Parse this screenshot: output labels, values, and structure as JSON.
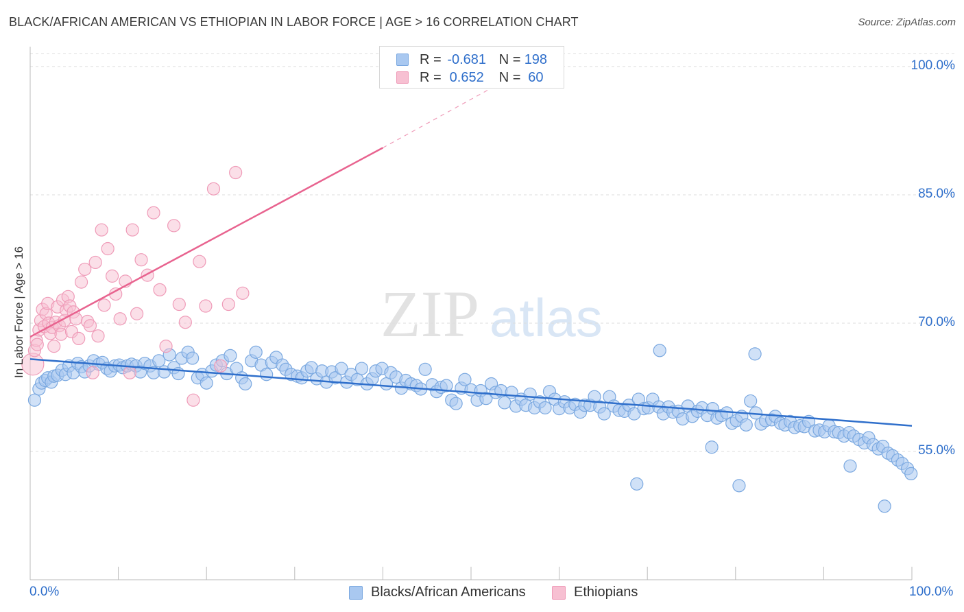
{
  "header": {
    "title": "BLACK/AFRICAN AMERICAN VS ETHIOPIAN IN LABOR FORCE | AGE > 16 CORRELATION CHART",
    "source": "Source: ZipAtlas.com"
  },
  "watermark": {
    "zip": "ZIP",
    "atlas": "atlas"
  },
  "colors": {
    "blue_fill": "#a9c8f0",
    "blue_stroke": "#7aa8e0",
    "blue_line": "#2f6fcb",
    "pink_fill": "#f7c0d2",
    "pink_stroke": "#ef9bb8",
    "pink_line": "#e8638f",
    "axis_text": "#2f6fcb",
    "grid": "#dddddd"
  },
  "legend": {
    "series": [
      {
        "r_label": "R =",
        "r_value": "-0.681",
        "n_label": "N =",
        "n_value": "198",
        "color": "#a9c8f0",
        "border": "#7aa8e0"
      },
      {
        "r_label": "R =",
        "r_value": "0.652",
        "n_label": "N =",
        "n_value": "60",
        "color": "#f7c0d2",
        "border": "#ef9bb8"
      }
    ]
  },
  "bottom_legend": [
    {
      "label": "Blacks/African Americans",
      "color": "#a9c8f0",
      "border": "#7aa8e0"
    },
    {
      "label": "Ethiopians",
      "color": "#f7c0d2",
      "border": "#ef9bb8"
    }
  ],
  "chart_data": {
    "type": "scatter",
    "title": "BLACK/AFRICAN AMERICAN VS ETHIOPIAN IN LABOR FORCE | AGE > 16 CORRELATION CHART",
    "xlabel": "",
    "ylabel": "In Labor Force | Age > 16",
    "xlim": [
      0,
      100
    ],
    "ylim": [
      40,
      102
    ],
    "x_tick_labels": [
      "0.0%",
      "100.0%"
    ],
    "y_ticks": [
      55,
      70,
      85,
      100
    ],
    "y_tick_labels": [
      "55.0%",
      "70.0%",
      "85.0%",
      "100.0%"
    ],
    "grid": "horizontal dashed",
    "legend_position": "top-center",
    "series": [
      {
        "name": "Blacks/African Americans",
        "r": -0.681,
        "n": 198,
        "trend": {
          "x": [
            0,
            100
          ],
          "y": [
            65.8,
            58.0
          ]
        },
        "points": [
          [
            0.5,
            61.0
          ],
          [
            1.0,
            62.3
          ],
          [
            1.3,
            63.0
          ],
          [
            1.7,
            63.3
          ],
          [
            2.0,
            63.6
          ],
          [
            2.4,
            63.1
          ],
          [
            2.7,
            63.8
          ],
          [
            3.1,
            63.9
          ],
          [
            3.6,
            64.5
          ],
          [
            4.0,
            64.0
          ],
          [
            4.4,
            65.0
          ],
          [
            4.9,
            64.2
          ],
          [
            5.4,
            65.3
          ],
          [
            5.8,
            64.9
          ],
          [
            6.2,
            64.3
          ],
          [
            6.7,
            65.0
          ],
          [
            7.2,
            65.6
          ],
          [
            7.8,
            65.2
          ],
          [
            8.2,
            65.4
          ],
          [
            8.7,
            64.7
          ],
          [
            9.1,
            64.4
          ],
          [
            9.6,
            65.0
          ],
          [
            10.1,
            65.1
          ],
          [
            10.5,
            64.8
          ],
          [
            11.0,
            65.0
          ],
          [
            11.5,
            65.2
          ],
          [
            12.0,
            65.0
          ],
          [
            12.5,
            64.3
          ],
          [
            13.0,
            65.3
          ],
          [
            13.6,
            65.0
          ],
          [
            14.0,
            64.2
          ],
          [
            14.6,
            65.6
          ],
          [
            15.2,
            64.3
          ],
          [
            15.8,
            66.3
          ],
          [
            16.3,
            64.8
          ],
          [
            16.8,
            64.1
          ],
          [
            17.2,
            65.9
          ],
          [
            17.9,
            66.6
          ],
          [
            18.4,
            65.9
          ],
          [
            19.0,
            63.6
          ],
          [
            19.5,
            64.0
          ],
          [
            20.0,
            63.0
          ],
          [
            20.6,
            64.4
          ],
          [
            21.1,
            65.1
          ],
          [
            21.8,
            65.6
          ],
          [
            22.3,
            64.1
          ],
          [
            22.7,
            66.2
          ],
          [
            23.4,
            64.7
          ],
          [
            24.0,
            63.6
          ],
          [
            24.4,
            62.9
          ],
          [
            25.1,
            65.6
          ],
          [
            25.6,
            66.6
          ],
          [
            26.2,
            65.1
          ],
          [
            26.8,
            64.0
          ],
          [
            27.4,
            65.4
          ],
          [
            27.9,
            66.0
          ],
          [
            28.6,
            65.1
          ],
          [
            29.0,
            64.6
          ],
          [
            29.6,
            64.0
          ],
          [
            30.3,
            63.8
          ],
          [
            30.8,
            63.6
          ],
          [
            31.4,
            64.4
          ],
          [
            31.9,
            64.8
          ],
          [
            32.5,
            63.5
          ],
          [
            33.1,
            64.4
          ],
          [
            33.6,
            63.1
          ],
          [
            34.2,
            64.3
          ],
          [
            34.6,
            63.6
          ],
          [
            35.3,
            64.7
          ],
          [
            35.9,
            63.1
          ],
          [
            36.4,
            64.0
          ],
          [
            37.1,
            63.4
          ],
          [
            37.6,
            64.7
          ],
          [
            38.2,
            62.9
          ],
          [
            38.8,
            63.5
          ],
          [
            39.2,
            64.4
          ],
          [
            39.9,
            64.7
          ],
          [
            40.4,
            62.9
          ],
          [
            40.9,
            64.2
          ],
          [
            41.5,
            63.7
          ],
          [
            42.1,
            62.4
          ],
          [
            42.6,
            63.3
          ],
          [
            43.2,
            62.9
          ],
          [
            43.8,
            62.7
          ],
          [
            44.3,
            62.3
          ],
          [
            44.8,
            64.6
          ],
          [
            45.6,
            62.8
          ],
          [
            46.1,
            62.0
          ],
          [
            46.6,
            62.5
          ],
          [
            47.2,
            62.7
          ],
          [
            47.8,
            61.0
          ],
          [
            48.3,
            60.6
          ],
          [
            48.9,
            62.4
          ],
          [
            49.3,
            63.4
          ],
          [
            50.0,
            62.2
          ],
          [
            50.7,
            61.0
          ],
          [
            51.1,
            62.1
          ],
          [
            51.7,
            61.2
          ],
          [
            52.3,
            62.9
          ],
          [
            52.8,
            61.9
          ],
          [
            53.4,
            62.1
          ],
          [
            53.8,
            60.7
          ],
          [
            54.6,
            61.9
          ],
          [
            55.1,
            60.3
          ],
          [
            55.7,
            61.1
          ],
          [
            56.2,
            60.4
          ],
          [
            56.7,
            61.7
          ],
          [
            57.2,
            60.1
          ],
          [
            57.8,
            60.8
          ],
          [
            58.4,
            60.1
          ],
          [
            58.9,
            62.0
          ],
          [
            59.5,
            61.1
          ],
          [
            60.0,
            60.0
          ],
          [
            60.6,
            60.8
          ],
          [
            61.2,
            60.1
          ],
          [
            61.8,
            60.5
          ],
          [
            62.4,
            59.6
          ],
          [
            62.9,
            60.4
          ],
          [
            63.5,
            60.4
          ],
          [
            64.0,
            61.4
          ],
          [
            64.6,
            60.2
          ],
          [
            65.1,
            59.4
          ],
          [
            65.7,
            61.4
          ],
          [
            66.2,
            60.3
          ],
          [
            66.8,
            59.8
          ],
          [
            67.4,
            59.7
          ],
          [
            67.9,
            60.4
          ],
          [
            68.5,
            59.4
          ],
          [
            69.0,
            61.1
          ],
          [
            69.6,
            60.0
          ],
          [
            70.1,
            60.1
          ],
          [
            70.6,
            61.1
          ],
          [
            71.3,
            60.2
          ],
          [
            71.8,
            59.4
          ],
          [
            72.4,
            60.2
          ],
          [
            72.9,
            59.6
          ],
          [
            73.5,
            59.7
          ],
          [
            74.0,
            58.8
          ],
          [
            74.6,
            60.3
          ],
          [
            75.1,
            59.1
          ],
          [
            75.7,
            59.7
          ],
          [
            76.2,
            60.1
          ],
          [
            76.8,
            59.2
          ],
          [
            77.4,
            60.0
          ],
          [
            77.9,
            58.9
          ],
          [
            78.4,
            59.2
          ],
          [
            79.0,
            59.5
          ],
          [
            79.6,
            58.3
          ],
          [
            80.1,
            58.6
          ],
          [
            80.7,
            59.1
          ],
          [
            81.2,
            58.1
          ],
          [
            81.7,
            60.9
          ],
          [
            82.3,
            59.5
          ],
          [
            82.9,
            58.2
          ],
          [
            83.4,
            58.6
          ],
          [
            84.1,
            58.7
          ],
          [
            84.5,
            59.1
          ],
          [
            85.1,
            58.3
          ],
          [
            85.6,
            58.1
          ],
          [
            86.2,
            58.5
          ],
          [
            86.7,
            57.8
          ],
          [
            87.3,
            58.0
          ],
          [
            87.8,
            57.9
          ],
          [
            88.3,
            58.5
          ],
          [
            89.0,
            57.4
          ],
          [
            89.5,
            57.5
          ],
          [
            90.1,
            57.3
          ],
          [
            90.6,
            58.0
          ],
          [
            91.2,
            57.3
          ],
          [
            91.7,
            57.2
          ],
          [
            92.3,
            56.8
          ],
          [
            92.9,
            57.2
          ],
          [
            93.4,
            56.8
          ],
          [
            94.0,
            56.4
          ],
          [
            94.6,
            56.0
          ],
          [
            95.1,
            56.6
          ],
          [
            95.6,
            55.8
          ],
          [
            96.2,
            55.3
          ],
          [
            96.7,
            55.6
          ],
          [
            97.3,
            54.8
          ],
          [
            97.8,
            54.5
          ],
          [
            98.4,
            54.0
          ],
          [
            98.9,
            53.6
          ],
          [
            99.5,
            53.0
          ],
          [
            99.9,
            52.4
          ],
          [
            93.0,
            53.3
          ],
          [
            68.8,
            51.2
          ],
          [
            77.3,
            55.5
          ],
          [
            82.2,
            66.4
          ],
          [
            71.4,
            66.8
          ],
          [
            96.9,
            48.6
          ],
          [
            80.4,
            51.0
          ]
        ]
      },
      {
        "name": "Ethiopians",
        "r": 0.652,
        "n": 60,
        "trend": {
          "x": [
            0,
            40
          ],
          "y": [
            68.4,
            90.5
          ]
        },
        "trend_dashed": {
          "x": [
            40,
            52
          ],
          "y": [
            90.5,
            97.3
          ]
        },
        "points": [
          [
            0.3,
            65.2
          ],
          [
            0.5,
            66.8
          ],
          [
            0.7,
            68.0
          ],
          [
            0.8,
            67.5
          ],
          [
            1.0,
            69.2
          ],
          [
            1.2,
            70.3
          ],
          [
            1.4,
            71.6
          ],
          [
            1.6,
            69.6
          ],
          [
            1.8,
            71.1
          ],
          [
            2.0,
            72.3
          ],
          [
            2.1,
            70.0
          ],
          [
            2.3,
            68.8
          ],
          [
            2.5,
            69.5
          ],
          [
            2.7,
            67.3
          ],
          [
            2.9,
            70.1
          ],
          [
            3.1,
            71.9
          ],
          [
            3.3,
            69.7
          ],
          [
            3.5,
            68.7
          ],
          [
            3.7,
            72.7
          ],
          [
            3.9,
            70.3
          ],
          [
            4.1,
            71.5
          ],
          [
            4.3,
            73.1
          ],
          [
            4.5,
            72.0
          ],
          [
            4.7,
            69.0
          ],
          [
            4.9,
            71.3
          ],
          [
            5.2,
            70.5
          ],
          [
            5.5,
            68.2
          ],
          [
            5.8,
            74.8
          ],
          [
            6.2,
            76.3
          ],
          [
            6.5,
            70.2
          ],
          [
            6.8,
            69.7
          ],
          [
            7.1,
            64.2
          ],
          [
            7.4,
            77.1
          ],
          [
            7.7,
            68.5
          ],
          [
            8.1,
            80.9
          ],
          [
            8.4,
            72.1
          ],
          [
            8.8,
            78.7
          ],
          [
            9.3,
            75.5
          ],
          [
            9.7,
            73.4
          ],
          [
            10.2,
            70.5
          ],
          [
            10.8,
            74.9
          ],
          [
            11.3,
            64.2
          ],
          [
            11.6,
            80.9
          ],
          [
            12.1,
            71.1
          ],
          [
            12.6,
            77.4
          ],
          [
            13.3,
            75.6
          ],
          [
            14.0,
            82.9
          ],
          [
            14.7,
            73.9
          ],
          [
            15.4,
            67.3
          ],
          [
            16.3,
            81.4
          ],
          [
            16.9,
            72.2
          ],
          [
            17.6,
            70.1
          ],
          [
            18.5,
            61.0
          ],
          [
            19.2,
            77.2
          ],
          [
            19.9,
            72.0
          ],
          [
            20.8,
            85.7
          ],
          [
            21.6,
            65.0
          ],
          [
            22.5,
            72.2
          ],
          [
            23.3,
            87.6
          ],
          [
            24.1,
            73.5
          ]
        ]
      }
    ]
  }
}
